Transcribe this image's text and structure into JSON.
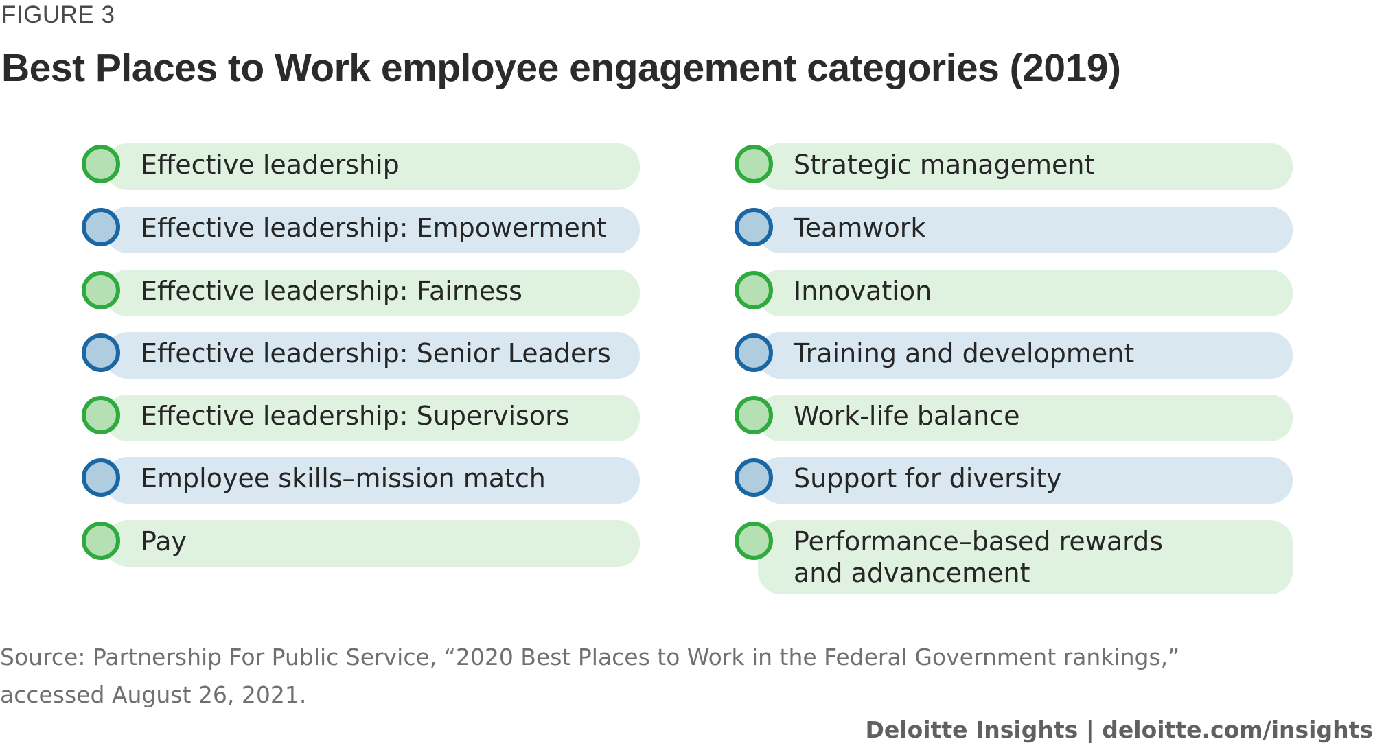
{
  "figure_label": "FIGURE 3",
  "title": "Best Places to Work employee engagement categories (2019)",
  "colors": {
    "green_fill": "#dff1df",
    "green_ring": "#2eaa3e",
    "blue_fill": "#d9e7f0",
    "blue_ring": "#1a67a3"
  },
  "left_items": [
    {
      "label": "Effective leadership",
      "color": "green"
    },
    {
      "label": "Effective leadership: Empowerment",
      "color": "blue"
    },
    {
      "label": "Effective leadership: Fairness",
      "color": "green"
    },
    {
      "label": "Effective leadership: Senior Leaders",
      "color": "blue"
    },
    {
      "label": "Effective leadership: Supervisors",
      "color": "green"
    },
    {
      "label": "Employee skills–mission match",
      "color": "blue"
    },
    {
      "label": "Pay",
      "color": "green"
    }
  ],
  "right_items": [
    {
      "label": "Strategic management",
      "color": "green"
    },
    {
      "label": "Teamwork",
      "color": "blue"
    },
    {
      "label": "Innovation",
      "color": "green"
    },
    {
      "label": "Training and development",
      "color": "blue"
    },
    {
      "label": "Work-life balance",
      "color": "green"
    },
    {
      "label": "Support for diversity",
      "color": "blue"
    },
    {
      "label": "Performance–based rewards\nand advancement",
      "color": "green"
    }
  ],
  "source": "Source: Partnership For Public Service, “2020 Best Places to Work in the Federal Government rankings,” accessed August 26, 2021.",
  "credit": "Deloitte Insights | deloitte.com/insights"
}
